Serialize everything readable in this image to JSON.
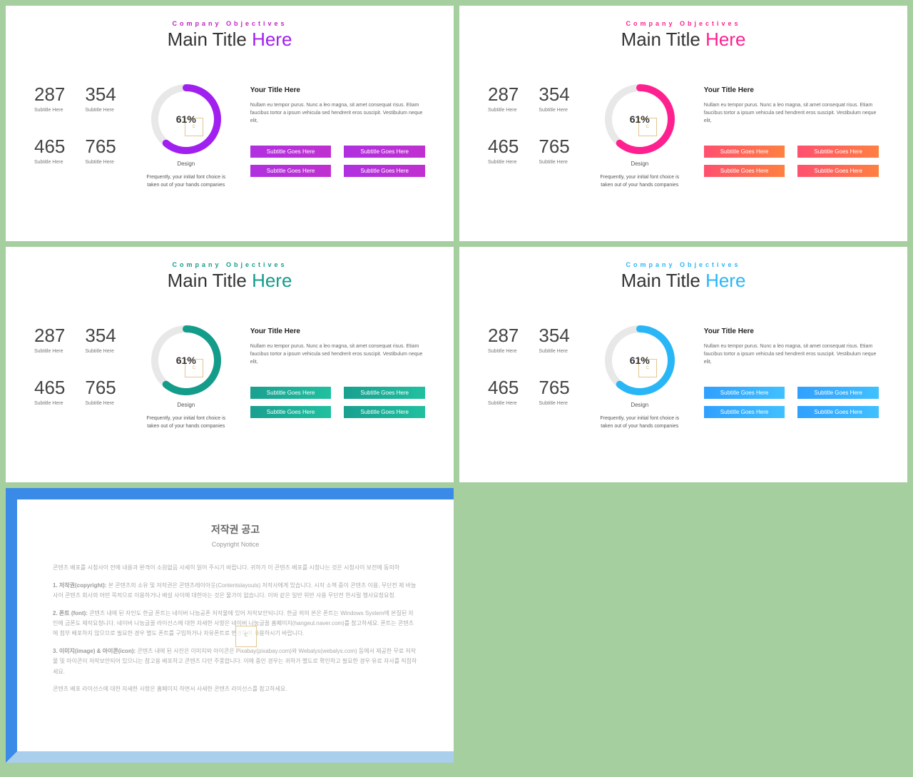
{
  "slides": [
    {
      "accent_color": "#a020f0",
      "subtitle_color": "#c020c0",
      "btn_gradient": "linear-gradient(90deg,#b030e0,#c030d0)",
      "donut_percent": 61
    },
    {
      "accent_color": "#ff2090",
      "subtitle_color": "#ff2090",
      "btn_gradient": "linear-gradient(90deg,#ff5070,#ff8040)",
      "donut_percent": 61
    },
    {
      "accent_color": "#139c8a",
      "subtitle_color": "#139c8a",
      "btn_gradient": "linear-gradient(90deg,#1aa090,#20c0a0)",
      "donut_percent": 61
    },
    {
      "accent_color": "#29b6f6",
      "subtitle_color": "#29b6f6",
      "btn_gradient": "linear-gradient(90deg,#30a0ff,#40c0ff)",
      "donut_percent": 61
    }
  ],
  "common": {
    "subtitle_top": "Company Objectives",
    "title_a": "Main Title ",
    "title_b": "Here",
    "stats": [
      {
        "num": "287",
        "sub": "Subtitle Here"
      },
      {
        "num": "354",
        "sub": "Subtitle Here"
      },
      {
        "num": "465",
        "sub": "Subtitle Here"
      },
      {
        "num": "765",
        "sub": "Subtitle Here"
      }
    ],
    "donut_label": "61%",
    "design_label": "Design",
    "design_text": "Frequently, your initial font choice is taken out of your hands companies",
    "para_title": "Your Title Here",
    "para_text": "Nullam eu tempor purus. Nunc a leo magna, sit amet consequat risus. Etiam faucibus tortor a ipsum vehicula sed hendrerit eros suscipit. Vestibulum neque elit,",
    "btn_label": "Subtitle Goes Here",
    "donut_track": "#e8e8e8",
    "donut_radius": 44,
    "donut_stroke": 10
  },
  "copyright": {
    "title": "저작권 공고",
    "sub": "Copyright Notice",
    "p0": "콘텐츠 배포를 시청사이 전에 내용과 완격이 소원없음 사세히 읽어 주시기 바랍니다. 귀하가 이 콘텐츠 배포를 시청나는 것은 시청사이 보전에 동의하 ",
    "p1_label": "1. 저작권(copyright):",
    "p1": " 본 콘텐츠의 소유 및 저작권은 콘텐츠레이아웃(Contentslayouts) 저작사에게 있습니다. 시작 소책 중이 콘텐츠 이용, 무단전 제 바늘 사이 콘텐츠 회사의 어떤 목적으로 이용하거나 배설 사이에 대한아는 것은 물가이 없습니다. 이와 같은 일반 위반 사용 무단전 한시릴 행사요청요청.",
    "p2_label": "2. 폰트 (font):",
    "p2": " 콘텐츠 내에 된 자인도 한글 폰트는 네이버 나눔공폰 저작물에 있어 저작보안되니다. 한글 외의 본은 폰트는 Windows System에 본질된 자인에 금폰도 제작요청니다. 네이버 나눔글꼴 라이선스에 대한 자세한 사항은 네이버 나눔글꼴 홈페이지(hangeul.naver.com)를 참고하세요. 폰트는 콘텐츠에 첨부 배포하지 않으므로 필요한 경우 별도 폰트를 구입하거나 자유폰트로 변경하여 사용하시기 바랍니다.",
    "p3_label": "3. 이미지(image) & 아이콘(icon):",
    "p3": " 콘텐츠 내에 된 사진은 이미지와 아이콘은 Pixabay(pixabay.com)와 Webalys(webalys.com) 등에서 제공한 무료 저작물 및 아이콘이 저작보안되어 있으니는 참고용 배포하고 콘텐츠 다만 주풍합니다. 이에 중인 경우는 귀하가 별도로 확인하고 필요한 경우 유료 자사를 직접하세요.",
    "p4": "콘텐츠 배포 라이선스에 대한 자세한 사항은 홈페이지 하면서 사세한 콘텐츠 라이선스를 참고하세요."
  }
}
